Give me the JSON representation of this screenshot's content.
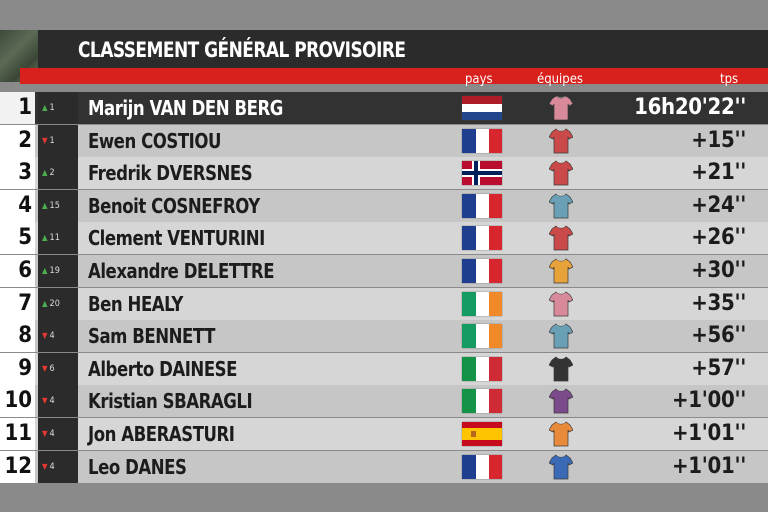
{
  "header": {
    "title": "CLASSEMENT GÉNÉRAL PROVISOIRE",
    "col_pays": "pays",
    "col_equipes": "équipes",
    "col_tps": "tps"
  },
  "colors": {
    "red_bar": "#d8201c",
    "up": "#4caf50",
    "down": "#e53935"
  },
  "rows": [
    {
      "pos": "1",
      "dir": "up",
      "change": "1",
      "name": "Marijn VAN DEN BERG",
      "flag": "nl",
      "jersey": "#d98a9a",
      "time": "16h20'22''"
    },
    {
      "pos": "2",
      "dir": "down",
      "change": "1",
      "name": "Ewen COSTIOU",
      "flag": "fr",
      "jersey": "#c94a48",
      "time": "+15''"
    },
    {
      "pos": "3",
      "dir": "up",
      "change": "2",
      "name": "Fredrik DVERSNES",
      "flag": "no",
      "jersey": "#c94a48",
      "time": "+21''"
    },
    {
      "pos": "4",
      "dir": "up",
      "change": "15",
      "name": "Benoit COSNEFROY",
      "flag": "fr",
      "jersey": "#6aa0b5",
      "time": "+24''"
    },
    {
      "pos": "5",
      "dir": "up",
      "change": "11",
      "name": "Clement VENTURINI",
      "flag": "fr",
      "jersey": "#c94a48",
      "time": "+26''"
    },
    {
      "pos": "6",
      "dir": "up",
      "change": "19",
      "name": "Alexandre DELETTRE",
      "flag": "fr",
      "jersey": "#e8a23a",
      "time": "+30''"
    },
    {
      "pos": "7",
      "dir": "up",
      "change": "20",
      "name": "Ben HEALY",
      "flag": "ie",
      "jersey": "#d98a9a",
      "time": "+35''"
    },
    {
      "pos": "8",
      "dir": "down",
      "change": "4",
      "name": "Sam BENNETT",
      "flag": "ie",
      "jersey": "#6aa0b5",
      "time": "+56''"
    },
    {
      "pos": "9",
      "dir": "down",
      "change": "6",
      "name": "Alberto DAINESE",
      "flag": "it",
      "jersey": "#333333",
      "time": "+57''"
    },
    {
      "pos": "10",
      "dir": "down",
      "change": "4",
      "name": "Kristian SBARAGLI",
      "flag": "it",
      "jersey": "#7b4a8a",
      "time": "+1'00''"
    },
    {
      "pos": "11",
      "dir": "down",
      "change": "4",
      "name": "Jon ABERASTURI",
      "flag": "es",
      "jersey": "#e88a3a",
      "time": "+1'01''"
    },
    {
      "pos": "12",
      "dir": "down",
      "change": "4",
      "name": "Leo DANES",
      "flag": "fr",
      "jersey": "#3a6ab5",
      "time": "+1'01''"
    }
  ]
}
